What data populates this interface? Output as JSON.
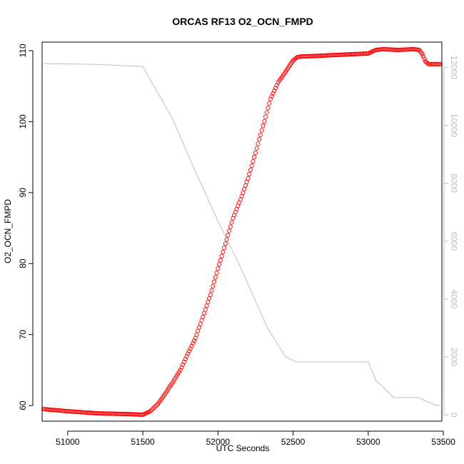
{
  "chart_data": {
    "type": "scatter",
    "title": "ORCAS RF13 O2_OCN_FMPD",
    "xlabel": "UTC Seconds",
    "ylabel": "O2_OCN_FMPD",
    "ylabel_right": "",
    "xlim": [
      50830,
      53490
    ],
    "ylim": [
      57.8,
      111.2
    ],
    "ylim_right": [
      -215,
      12870
    ],
    "x_ticks": [
      51000,
      51500,
      52000,
      52500,
      53000,
      53500
    ],
    "y_ticks": [
      60,
      70,
      80,
      90,
      100,
      110
    ],
    "y_ticks_right": [
      0,
      2000,
      4000,
      6000,
      8000,
      10000,
      12000
    ],
    "x_tick_labels": [
      "51000",
      "51500",
      "52000",
      "52500",
      "53000",
      "53500"
    ],
    "y_tick_labels": [
      "60",
      "70",
      "80",
      "90",
      "100",
      "110"
    ],
    "y_tick_labels_right": [
      "0",
      "2000",
      "4000",
      "6000",
      "8000",
      "10000",
      "12000"
    ],
    "grid": false,
    "legend": "none",
    "series": [
      {
        "type": "scatter",
        "marker": "open-circle",
        "color": "#ff0000",
        "axis": "left",
        "points": [
          [
            50840,
            59.5
          ],
          [
            51000,
            59.2
          ],
          [
            51200,
            58.9
          ],
          [
            51400,
            58.8
          ],
          [
            51500,
            58.7
          ],
          [
            51550,
            59.2
          ],
          [
            51600,
            60.2
          ],
          [
            51650,
            61.7
          ],
          [
            51700,
            63.3
          ],
          [
            51750,
            65.0
          ],
          [
            51800,
            67.3
          ],
          [
            51850,
            69.5
          ],
          [
            51900,
            72.5
          ],
          [
            51950,
            75.6
          ],
          [
            52000,
            79.3
          ],
          [
            52050,
            82.8
          ],
          [
            52100,
            86.4
          ],
          [
            52150,
            89.0
          ],
          [
            52200,
            92.0
          ],
          [
            52250,
            95.6
          ],
          [
            52300,
            99.4
          ],
          [
            52350,
            103.2
          ],
          [
            52400,
            105.5
          ],
          [
            52450,
            107.0
          ],
          [
            52480,
            108.0
          ],
          [
            52500,
            108.6
          ],
          [
            52530,
            109.1
          ],
          [
            52560,
            109.2
          ],
          [
            52600,
            109.2
          ],
          [
            52700,
            109.3
          ],
          [
            52800,
            109.4
          ],
          [
            52900,
            109.5
          ],
          [
            53000,
            109.6
          ],
          [
            53050,
            110.1
          ],
          [
            53100,
            110.2
          ],
          [
            53200,
            110.1
          ],
          [
            53300,
            110.2
          ],
          [
            53340,
            110.1
          ],
          [
            53360,
            109.5
          ],
          [
            53380,
            108.5
          ],
          [
            53400,
            108.1
          ],
          [
            53450,
            108.1
          ],
          [
            53480,
            108.1
          ]
        ]
      },
      {
        "type": "line",
        "color": "#bebebe",
        "axis": "right",
        "points": [
          [
            50840,
            12130
          ],
          [
            51000,
            12120
          ],
          [
            51200,
            12100
          ],
          [
            51400,
            12050
          ],
          [
            51500,
            12030
          ],
          [
            51700,
            10200
          ],
          [
            51850,
            8400
          ],
          [
            52000,
            6700
          ],
          [
            52150,
            5100
          ],
          [
            52330,
            3000
          ],
          [
            52450,
            2000
          ],
          [
            52520,
            1830
          ],
          [
            52800,
            1830
          ],
          [
            53000,
            1830
          ],
          [
            53050,
            1200
          ],
          [
            53170,
            600
          ],
          [
            53330,
            600
          ],
          [
            53450,
            330
          ],
          [
            53480,
            330
          ]
        ]
      }
    ]
  }
}
